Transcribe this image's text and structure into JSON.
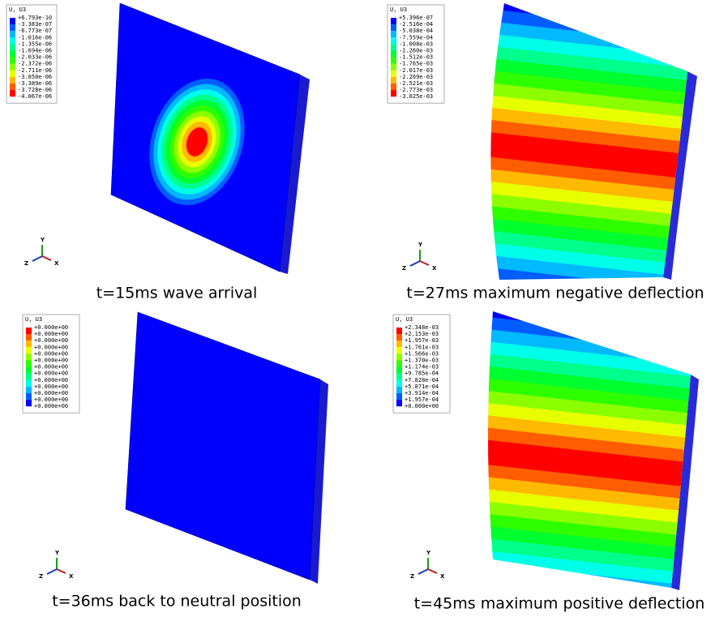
{
  "panels": [
    {
      "legend": {
        "title": "U, U3",
        "labels": [
          "+6.793e-10",
          "-3.383e-07",
          "-6.773e-07",
          "-1.016e-06",
          "-1.355e-06",
          "-1.694e-06",
          "-2.033e-06",
          "-2.372e-06",
          "-2.711e-06",
          "-3.050e-06",
          "-3.389e-06",
          "-3.728e-06",
          "-4.067e-06"
        ]
      },
      "triad": {
        "y": "Y",
        "z": "Z",
        "x": "X"
      },
      "caption": "t=15ms wave arrival"
    },
    {
      "legend": {
        "title": "U, U3",
        "labels": [
          "+5.396e-07",
          "-2.516e-04",
          "-5.038e-04",
          "-7.559e-04",
          "-1.008e-03",
          "-1.260e-03",
          "-1.512e-03",
          "-1.765e-03",
          "-2.017e-03",
          "-2.269e-03",
          "-2.521e-03",
          "-2.773e-03",
          "-3.025e-03"
        ]
      },
      "triad": {
        "y": "Y",
        "z": "Z",
        "x": "X"
      },
      "caption": "t=27ms maximum negative deflection"
    },
    {
      "legend": {
        "title": "U, U3",
        "labels": [
          "+0.000e+00",
          "+0.000e+00",
          "+0.000e+00",
          "+0.000e+00",
          "+0.000e+00",
          "+0.000e+00",
          "+0.000e+00",
          "+0.000e+00",
          "+0.000e+00",
          "+0.000e+00",
          "+0.000e+00",
          "+0.000e+00",
          "+0.000e+00"
        ]
      },
      "triad": {
        "y": "Y",
        "z": "Z",
        "x": "X"
      },
      "caption": "t=36ms back to neutral position"
    },
    {
      "legend": {
        "title": "U, U3",
        "labels": [
          "+2.348e-03",
          "+2.153e-03",
          "+1.957e-03",
          "+1.761e-03",
          "+1.566e-03",
          "+1.370e-03",
          "+1.174e-03",
          "+9.785e-04",
          "+7.828e-04",
          "+5.871e-04",
          "+3.914e-04",
          "+1.957e-04",
          "+0.000e+00"
        ]
      },
      "triad": {
        "y": "Y",
        "z": "Z",
        "x": "X"
      },
      "caption": "t=45ms maximum positive deflection"
    }
  ]
}
